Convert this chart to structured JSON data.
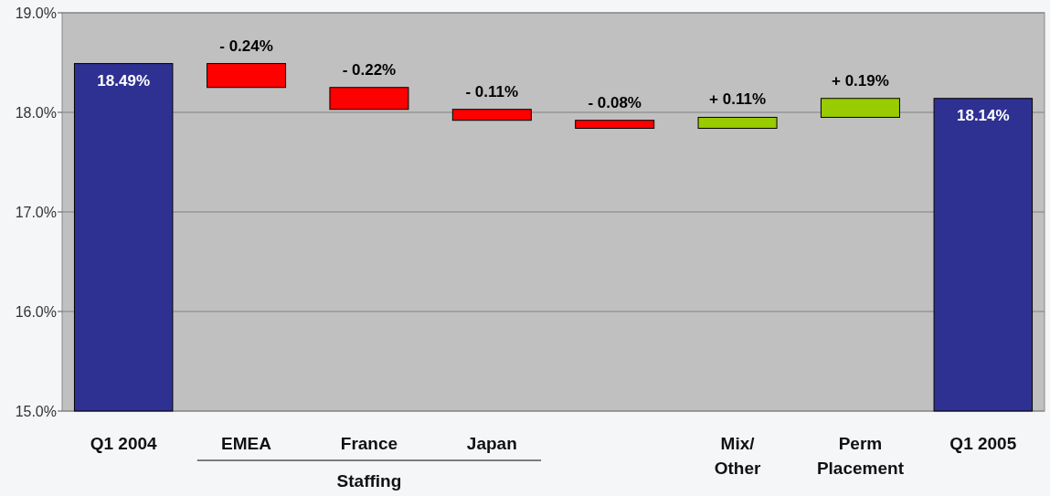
{
  "chart_data": {
    "type": "bar",
    "categories": [
      "Q1 2004",
      "EMEA",
      "France",
      "Japan",
      null,
      "Mix/\nOther",
      "Perm\nPlacement",
      "Q1 2005"
    ],
    "values": [
      18.49,
      -0.24,
      -0.22,
      -0.11,
      -0.08,
      0.11,
      0.19,
      18.14
    ],
    "base": [
      null,
      18.49,
      18.25,
      18.03,
      17.92,
      17.84,
      17.95,
      null
    ],
    "colors": [
      "#2e3192",
      "#ff0000",
      "#ff0000",
      "#ff0000",
      "#ff0000",
      "#99cc00",
      "#99cc00",
      "#2e3192"
    ],
    "value_labels": [
      "18.49%",
      "- 0.24%",
      "- 0.22%",
      "- 0.11%",
      "- 0.08%",
      "+ 0.11%",
      "+ 0.19%",
      "18.14%"
    ],
    "ylim": [
      15,
      19
    ],
    "yticks": [
      {
        "value": 15,
        "label": "15.0%"
      },
      {
        "value": 16,
        "label": "16.0%"
      },
      {
        "value": 17,
        "label": "17.0%"
      },
      {
        "value": 18,
        "label": "18.0%"
      },
      {
        "value": 19,
        "label": "19.0%"
      }
    ],
    "grid": "y",
    "annotations": [
      "Staffing"
    ]
  }
}
